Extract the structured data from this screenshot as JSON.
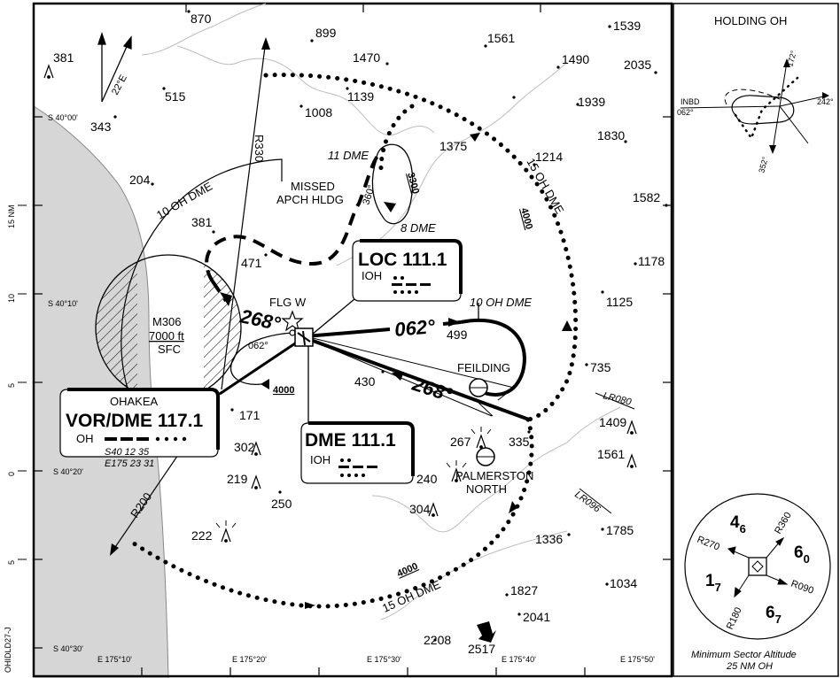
{
  "chart": {
    "side_id": "OHIDLD27-J",
    "holding_title": "HOLDING OH",
    "holding_inbd": "INBD",
    "holding_inbd_course": "062°",
    "holding_radial_242": "242°",
    "holding_radial_172": "172°",
    "holding_radial_352": "352°",
    "nm_scale_label": "15 NM",
    "scale_ticks": [
      "10",
      "5",
      "0",
      "5"
    ],
    "variation": "22°E",
    "lat_labels": [
      "S 40°00'",
      "S 40°10'",
      "S 40°20'",
      "S 40°30'"
    ],
    "lon_labels": [
      "E 175°10'",
      "E 175°20'",
      "E 175°30'",
      "E 175°40'",
      "E 175°50'"
    ]
  },
  "elevations": [
    "870",
    "899",
    "1561",
    "1539",
    "381",
    "1470",
    "1490",
    "2035",
    "515",
    "1139",
    "1939",
    "343",
    "1008",
    "1375",
    "1830",
    "1214",
    "204",
    "1582",
    "381",
    "471",
    "1178",
    "1125",
    "499",
    "735",
    "430",
    "1409",
    "171",
    "335",
    "267",
    "302",
    "1561",
    "219",
    "240",
    "250",
    "304",
    "1785",
    "1336",
    "222",
    "1034",
    "1827",
    "2041",
    "2208",
    "2517"
  ],
  "navaids": {
    "vor": {
      "place": "OHAKEA",
      "name": "VOR/DME 117.1",
      "ident": "OH",
      "lat": "S40 12 35",
      "lon": "E175 23 31"
    },
    "loc": {
      "name": "LOC 111.1",
      "ident": "IOH"
    },
    "dme": {
      "name": "DME 111.1",
      "ident": "IOH"
    }
  },
  "labels": {
    "flg": "FLG W",
    "feilding": "FEILDING",
    "palmerston_1": "PALMERSTON",
    "palmerston_2": "NORTH",
    "missed_1": "MISSED",
    "missed_2": "APCH HLDG",
    "restricted_id": "M306",
    "restricted_alt": "7000 ft",
    "restricted_lower": "SFC",
    "arc_10": "10 OH DME",
    "arc_15_upper": "15 OH DME",
    "arc_15_lower": "15 OH DME",
    "dme_11": "11 DME",
    "dme_8": "8 DME",
    "dme_10_oh": "10 OH DME",
    "alt_3300": "3300",
    "alt_4000_a": "4000",
    "alt_4000_b": "4000",
    "alt_4000_c": "4000",
    "course_268_a": "268°",
    "course_268_b": "268°",
    "course_062_a": "062°",
    "course_062_b": "062°",
    "course_360": "360°",
    "radial_330": "R330",
    "radial_200": "R200",
    "lr080": "LR080",
    "lr096": "LR096"
  },
  "msa": {
    "caption_1": "Minimum Sector Altitude",
    "caption_2": "25 NM OH",
    "r360": "R360",
    "r090": "R090",
    "r180": "R180",
    "r270": "R270",
    "s_nw": "4",
    "s_nw_sub": "6",
    "s_ne": "6",
    "s_ne_sub": "0",
    "s_sw": "1",
    "s_sw_sub": "7",
    "s_se": "6",
    "s_se_sub": "7"
  },
  "colors": {
    "ink": "#000000",
    "sea": "#d6d6d6",
    "terrain": "#c8c8c8",
    "paper": "#ffffff"
  }
}
